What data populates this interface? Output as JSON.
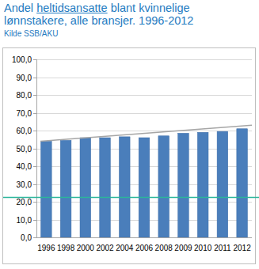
{
  "chart_data": {
    "type": "bar",
    "title": "Andel heltidsansatte blant kvinnelige lønnstakere, alle bransjer. 1996-2012",
    "subtitle": "Kilde SSB/AKU",
    "categories": [
      "1996",
      "1998",
      "2000",
      "2002",
      "2004",
      "2006",
      "2008",
      "2009",
      "2010",
      "2011",
      "2012"
    ],
    "values": [
      54,
      54.5,
      56,
      56,
      56.5,
      56,
      57,
      58.5,
      59,
      59.5,
      61
    ],
    "color": "#4a7ebb",
    "ylim": [
      0,
      100
    ],
    "yticks": [
      {
        "value": 0,
        "label": "0,0"
      },
      {
        "value": 10,
        "label": "10,0"
      },
      {
        "value": 20,
        "label": "20,0"
      },
      {
        "value": 30,
        "label": "30,0"
      },
      {
        "value": 40,
        "label": "40,0"
      },
      {
        "value": 50,
        "label": "50,0"
      },
      {
        "value": 60,
        "label": "60,0"
      },
      {
        "value": 70,
        "label": "70,0"
      },
      {
        "value": 80,
        "label": "80,0"
      },
      {
        "value": 90,
        "label": "90,0"
      },
      {
        "value": 100,
        "label": "100,0"
      }
    ],
    "grid": true,
    "trend_line": {
      "start": 54,
      "end": 63,
      "color": "#a6a6a6"
    },
    "reference_line": {
      "value": 22.5,
      "color": "#2bb59a"
    }
  }
}
